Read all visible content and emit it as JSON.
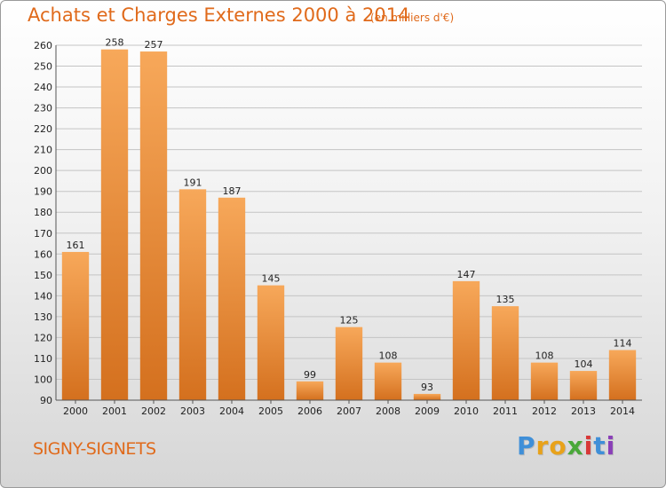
{
  "title": "Achats et Charges Externes 2000 à 2014",
  "subtitle": "(en milliers d'€)",
  "commune": "SIGNY-SIGNETS",
  "logo": {
    "letters": [
      {
        "char": "P",
        "color": "#3f8fd8"
      },
      {
        "char": "r",
        "color": "#e8a21a"
      },
      {
        "char": "o",
        "color": "#e8a21a"
      },
      {
        "char": "x",
        "color": "#4aa83a"
      },
      {
        "char": "i",
        "color": "#d83838"
      },
      {
        "char": "t",
        "color": "#3f8fd8"
      },
      {
        "char": "i",
        "color": "#8a3fb8"
      }
    ]
  },
  "colors": {
    "bar_top": "#f7a85a",
    "bar_bottom": "#d4701e",
    "accent": "#e06a1b",
    "grid": "#c4c4c4"
  },
  "chart_data": {
    "type": "bar",
    "title": "Achats et Charges Externes 2000 à 2014",
    "subtitle": "(en milliers d'€)",
    "xlabel": "",
    "ylabel": "",
    "categories": [
      "2000",
      "2001",
      "2002",
      "2003",
      "2004",
      "2005",
      "2006",
      "2007",
      "2008",
      "2009",
      "2010",
      "2011",
      "2012",
      "2013",
      "2014"
    ],
    "values": [
      161,
      258,
      257,
      191,
      187,
      145,
      99,
      125,
      108,
      93,
      147,
      135,
      108,
      104,
      114
    ],
    "ylim": [
      90,
      260
    ],
    "ytick_step": 10,
    "grid": true,
    "legend": "none"
  }
}
